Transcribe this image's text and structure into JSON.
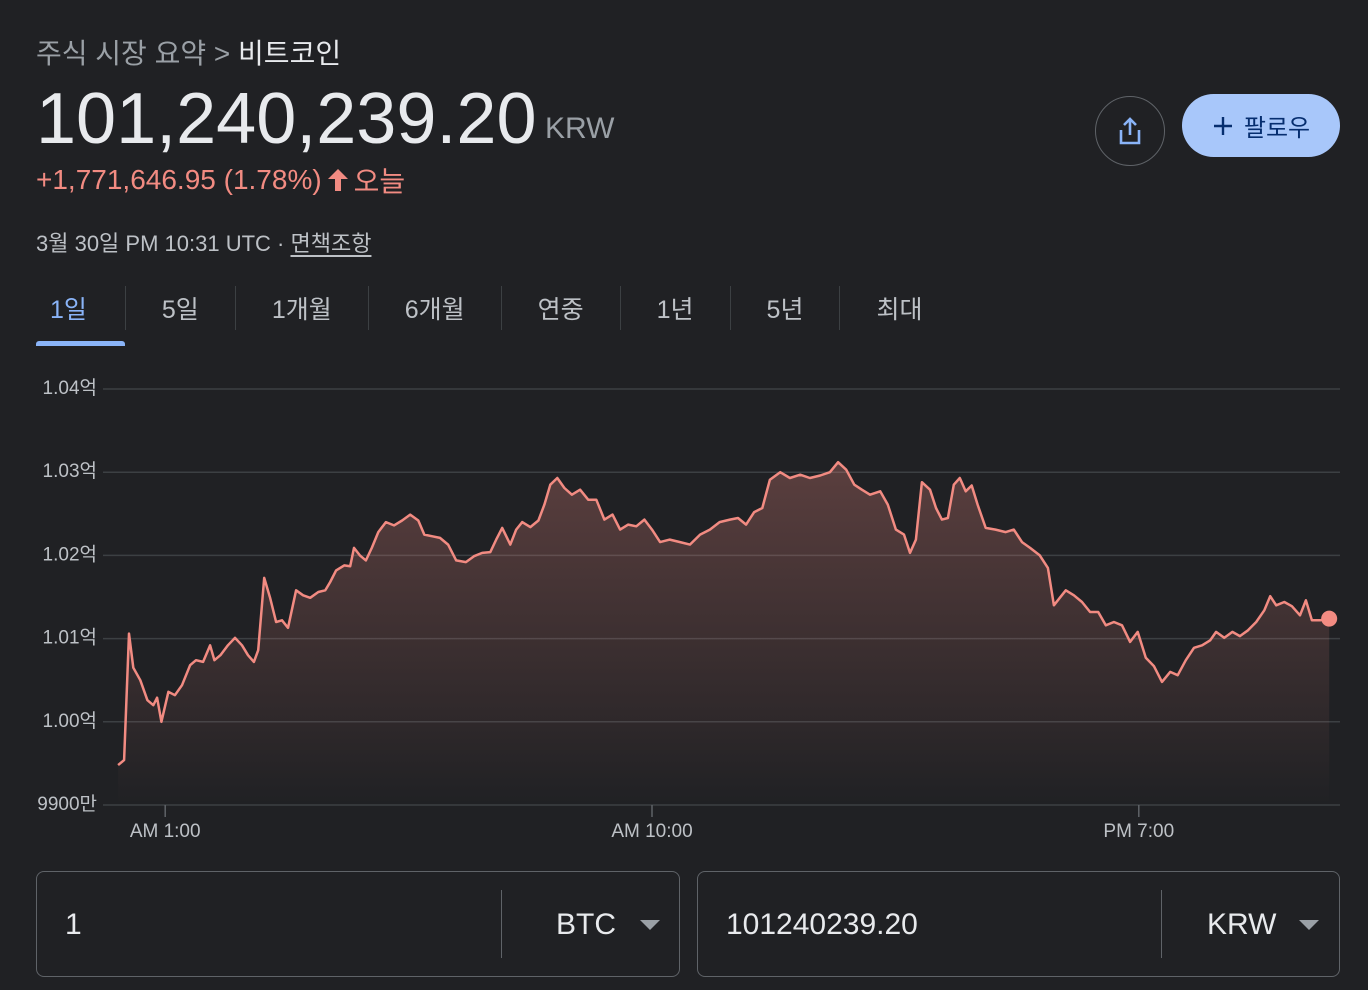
{
  "header": {
    "breadcrumb": "주식 시장 요약",
    "separator": ">",
    "title": "비트코인"
  },
  "price": {
    "value": "101,240,239.20",
    "currency": "KRW"
  },
  "change": {
    "text": "+1,771,646.95 (1.78%)",
    "period": "오늘"
  },
  "timestamp": "3월 30일 PM 10:31 UTC",
  "dot": "·",
  "disclaimer": "면책조항",
  "follow_button": "팔로우",
  "tabs": [
    "1일",
    "5일",
    "1개월",
    "6개월",
    "연중",
    "1년",
    "5년",
    "최대"
  ],
  "converter": {
    "from_amount": "1",
    "from_unit": "BTC",
    "to_amount": "101240239.20",
    "to_unit": "KRW"
  },
  "chart_data": {
    "type": "line",
    "color": "#f28b82",
    "grid": true,
    "ylim": [
      99000000,
      104000000
    ],
    "yticks": [
      {
        "value": 99000000,
        "label": "9900만"
      },
      {
        "value": 100000000,
        "label": "1.00억"
      },
      {
        "value": 101000000,
        "label": "1.01억"
      },
      {
        "value": 102000000,
        "label": "1.02억"
      },
      {
        "value": 103000000,
        "label": "1.03억"
      },
      {
        "value": 104000000,
        "label": "1.04억"
      }
    ],
    "xlim": [
      -0.15,
      22.72
    ],
    "xticks": [
      {
        "value": 1,
        "label": "AM 1:00"
      },
      {
        "value": 10,
        "label": "AM 10:00"
      },
      {
        "value": 19,
        "label": "PM 7:00"
      }
    ],
    "x": [
      0.13,
      0.24,
      0.33,
      0.41,
      0.54,
      0.67,
      0.78,
      0.85,
      0.93,
      1.06,
      1.18,
      1.31,
      1.46,
      1.57,
      1.7,
      1.83,
      1.91,
      2.02,
      2.16,
      2.29,
      2.42,
      2.53,
      2.64,
      2.72,
      2.83,
      2.94,
      3.05,
      3.16,
      3.27,
      3.42,
      3.55,
      3.68,
      3.83,
      3.96,
      4.05,
      4.16,
      4.31,
      4.42,
      4.49,
      4.6,
      4.71,
      4.82,
      4.94,
      5.08,
      5.23,
      5.38,
      5.53,
      5.68,
      5.79,
      5.94,
      6.08,
      6.23,
      6.38,
      6.56,
      6.71,
      6.86,
      7.01,
      7.12,
      7.23,
      7.38,
      7.49,
      7.6,
      7.75,
      7.9,
      8.01,
      8.12,
      8.25,
      8.38,
      8.52,
      8.67,
      8.82,
      8.97,
      9.12,
      9.27,
      9.41,
      9.56,
      9.71,
      9.86,
      10,
      10.15,
      10.33,
      10.52,
      10.7,
      10.89,
      11.07,
      11.25,
      11.44,
      11.59,
      11.74,
      11.89,
      12.04,
      12.18,
      12.37,
      12.55,
      12.74,
      12.92,
      13.11,
      13.29,
      13.44,
      13.59,
      13.74,
      13.88,
      14.03,
      14.22,
      14.36,
      14.51,
      14.66,
      14.77,
      14.88,
      14.99,
      15.14,
      15.25,
      15.36,
      15.47,
      15.58,
      15.69,
      15.8,
      15.91,
      16.02,
      16.17,
      16.35,
      16.54,
      16.69,
      16.84,
      16.99,
      17.17,
      17.32,
      17.43,
      17.54,
      17.65,
      17.8,
      17.95,
      18.1,
      18.25,
      18.39,
      18.54,
      18.69,
      18.84,
      18.98,
      19.13,
      19.28,
      19.43,
      19.58,
      19.72,
      19.87,
      20.02,
      20.17,
      20.32,
      20.43,
      20.58,
      20.73,
      20.87,
      21.02,
      21.17,
      21.32,
      21.43,
      21.54,
      21.69,
      21.83,
      21.98,
      22.09,
      22.2,
      22.35,
      22.52
    ],
    "values": [
      99480000,
      99540000,
      101060000,
      100650000,
      100500000,
      100260000,
      100200000,
      100290000,
      100000000,
      100360000,
      100320000,
      100440000,
      100680000,
      100740000,
      100720000,
      100920000,
      100740000,
      100800000,
      100920000,
      101010000,
      100920000,
      100800000,
      100720000,
      100860000,
      101730000,
      101490000,
      101200000,
      101220000,
      101130000,
      101580000,
      101520000,
      101490000,
      101560000,
      101580000,
      101680000,
      101820000,
      101880000,
      101870000,
      102090000,
      102000000,
      101940000,
      102090000,
      102280000,
      102400000,
      102360000,
      102420000,
      102490000,
      102420000,
      102250000,
      102230000,
      102210000,
      102130000,
      101940000,
      101920000,
      101990000,
      102030000,
      102040000,
      102190000,
      102330000,
      102130000,
      102310000,
      102400000,
      102340000,
      102420000,
      102610000,
      102850000,
      102930000,
      102810000,
      102730000,
      102790000,
      102670000,
      102670000,
      102430000,
      102490000,
      102310000,
      102370000,
      102350000,
      102430000,
      102310000,
      102160000,
      102190000,
      102160000,
      102130000,
      102250000,
      102310000,
      102400000,
      102430000,
      102450000,
      102370000,
      102520000,
      102570000,
      102910000,
      103000000,
      102930000,
      102970000,
      102930000,
      102960000,
      103000000,
      103120000,
      103030000,
      102850000,
      102790000,
      102730000,
      102770000,
      102610000,
      102310000,
      102250000,
      102030000,
      102190000,
      102880000,
      102790000,
      102570000,
      102430000,
      102450000,
      102850000,
      102930000,
      102770000,
      102840000,
      102610000,
      102330000,
      102310000,
      102280000,
      102310000,
      102160000,
      102090000,
      102000000,
      101850000,
      101400000,
      101490000,
      101580000,
      101520000,
      101440000,
      101320000,
      101320000,
      101160000,
      101200000,
      101160000,
      100960000,
      101080000,
      100770000,
      100670000,
      100480000,
      100600000,
      100560000,
      100740000,
      100890000,
      100920000,
      100980000,
      101080000,
      101010000,
      101080000,
      101030000,
      101100000,
      101200000,
      101340000,
      101510000,
      101400000,
      101440000,
      101390000,
      101280000,
      101460000,
      101220000,
      101220000,
      101240239.2
    ]
  }
}
